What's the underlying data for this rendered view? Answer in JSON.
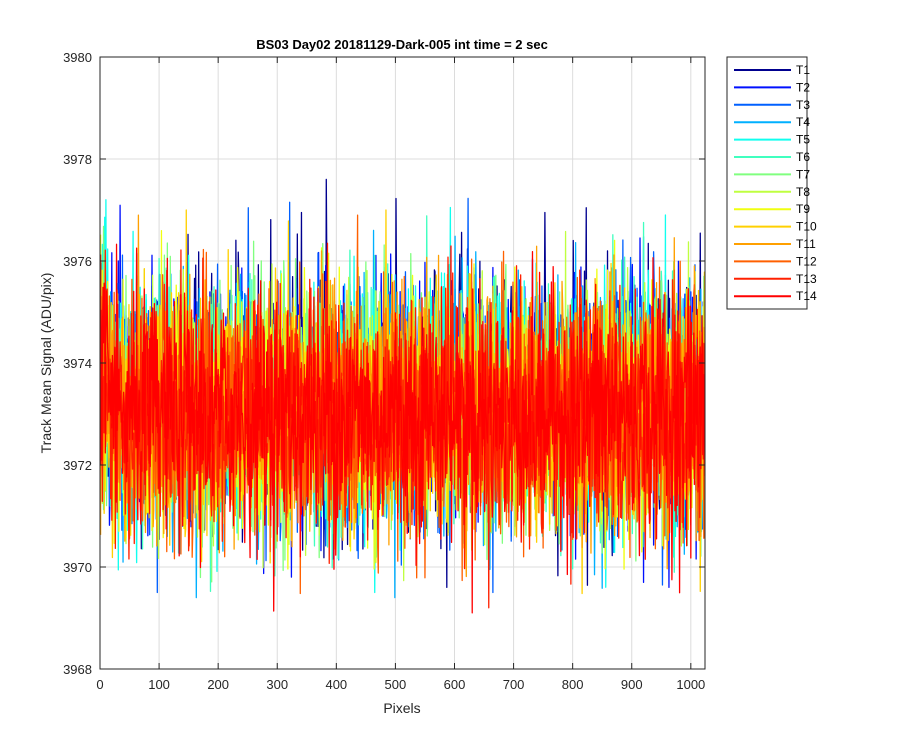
{
  "chart_data": {
    "type": "line",
    "title": "BS03 Day02 20181129-Dark-005 int time = 2 sec",
    "xlabel": "Pixels",
    "ylabel": "Track Mean Signal (ADU/pix)",
    "xlim": [
      0,
      1024
    ],
    "ylim": [
      3968,
      3980
    ],
    "xticks": [
      "0",
      "100",
      "200",
      "300",
      "400",
      "500",
      "600",
      "700",
      "800",
      "900",
      "1000"
    ],
    "xtick_values": [
      0,
      100,
      200,
      300,
      400,
      500,
      600,
      700,
      800,
      900,
      1000
    ],
    "yticks": [
      "3968",
      "3970",
      "3972",
      "3974",
      "3976",
      "3978",
      "3980"
    ],
    "ytick_values": [
      3968,
      3970,
      3972,
      3974,
      3976,
      3978,
      3980
    ],
    "grid": true,
    "legend_position": "outside-top-right",
    "x_range": [
      1,
      1024
    ],
    "series": [
      {
        "name": "T1",
        "color": "#00008f",
        "mean": 3973.3,
        "typical_min": 3970.2,
        "typical_max": 3976.8
      },
      {
        "name": "T2",
        "color": "#0010ff",
        "mean": 3973.3,
        "typical_min": 3970.2,
        "typical_max": 3976.7
      },
      {
        "name": "T3",
        "color": "#0060ff",
        "mean": 3973.2,
        "typical_min": 3970.1,
        "typical_max": 3976.5
      },
      {
        "name": "T4",
        "color": "#00b0ff",
        "mean": 3973.2,
        "typical_min": 3970.0,
        "typical_max": 3976.5
      },
      {
        "name": "T5",
        "color": "#10ffef",
        "mean": 3973.2,
        "typical_min": 3970.1,
        "typical_max": 3976.4
      },
      {
        "name": "T6",
        "color": "#40ffbf",
        "mean": 3973.1,
        "typical_min": 3970.1,
        "typical_max": 3976.3
      },
      {
        "name": "T7",
        "color": "#80ff7f",
        "mean": 3973.1,
        "typical_min": 3970.0,
        "typical_max": 3976.3
      },
      {
        "name": "T8",
        "color": "#bfff40",
        "mean": 3973.1,
        "typical_min": 3970.0,
        "typical_max": 3976.2
      },
      {
        "name": "T9",
        "color": "#f0ff10",
        "mean": 3973.0,
        "typical_min": 3970.0,
        "typical_max": 3976.2
      },
      {
        "name": "T10",
        "color": "#ffd000",
        "mean": 3973.0,
        "typical_min": 3970.0,
        "typical_max": 3976.2
      },
      {
        "name": "T11",
        "color": "#ffa000",
        "mean": 3973.0,
        "typical_min": 3969.9,
        "typical_max": 3976.1
      },
      {
        "name": "T12",
        "color": "#ff6000",
        "mean": 3973.0,
        "typical_min": 3969.8,
        "typical_max": 3976.1
      },
      {
        "name": "T13",
        "color": "#ff2000",
        "mean": 3973.0,
        "typical_min": 3969.8,
        "typical_max": 3976.0
      },
      {
        "name": "T14",
        "color": "#ff0000",
        "mean": 3973.0,
        "typical_min": 3969.7,
        "typical_max": 3976.0
      }
    ]
  }
}
